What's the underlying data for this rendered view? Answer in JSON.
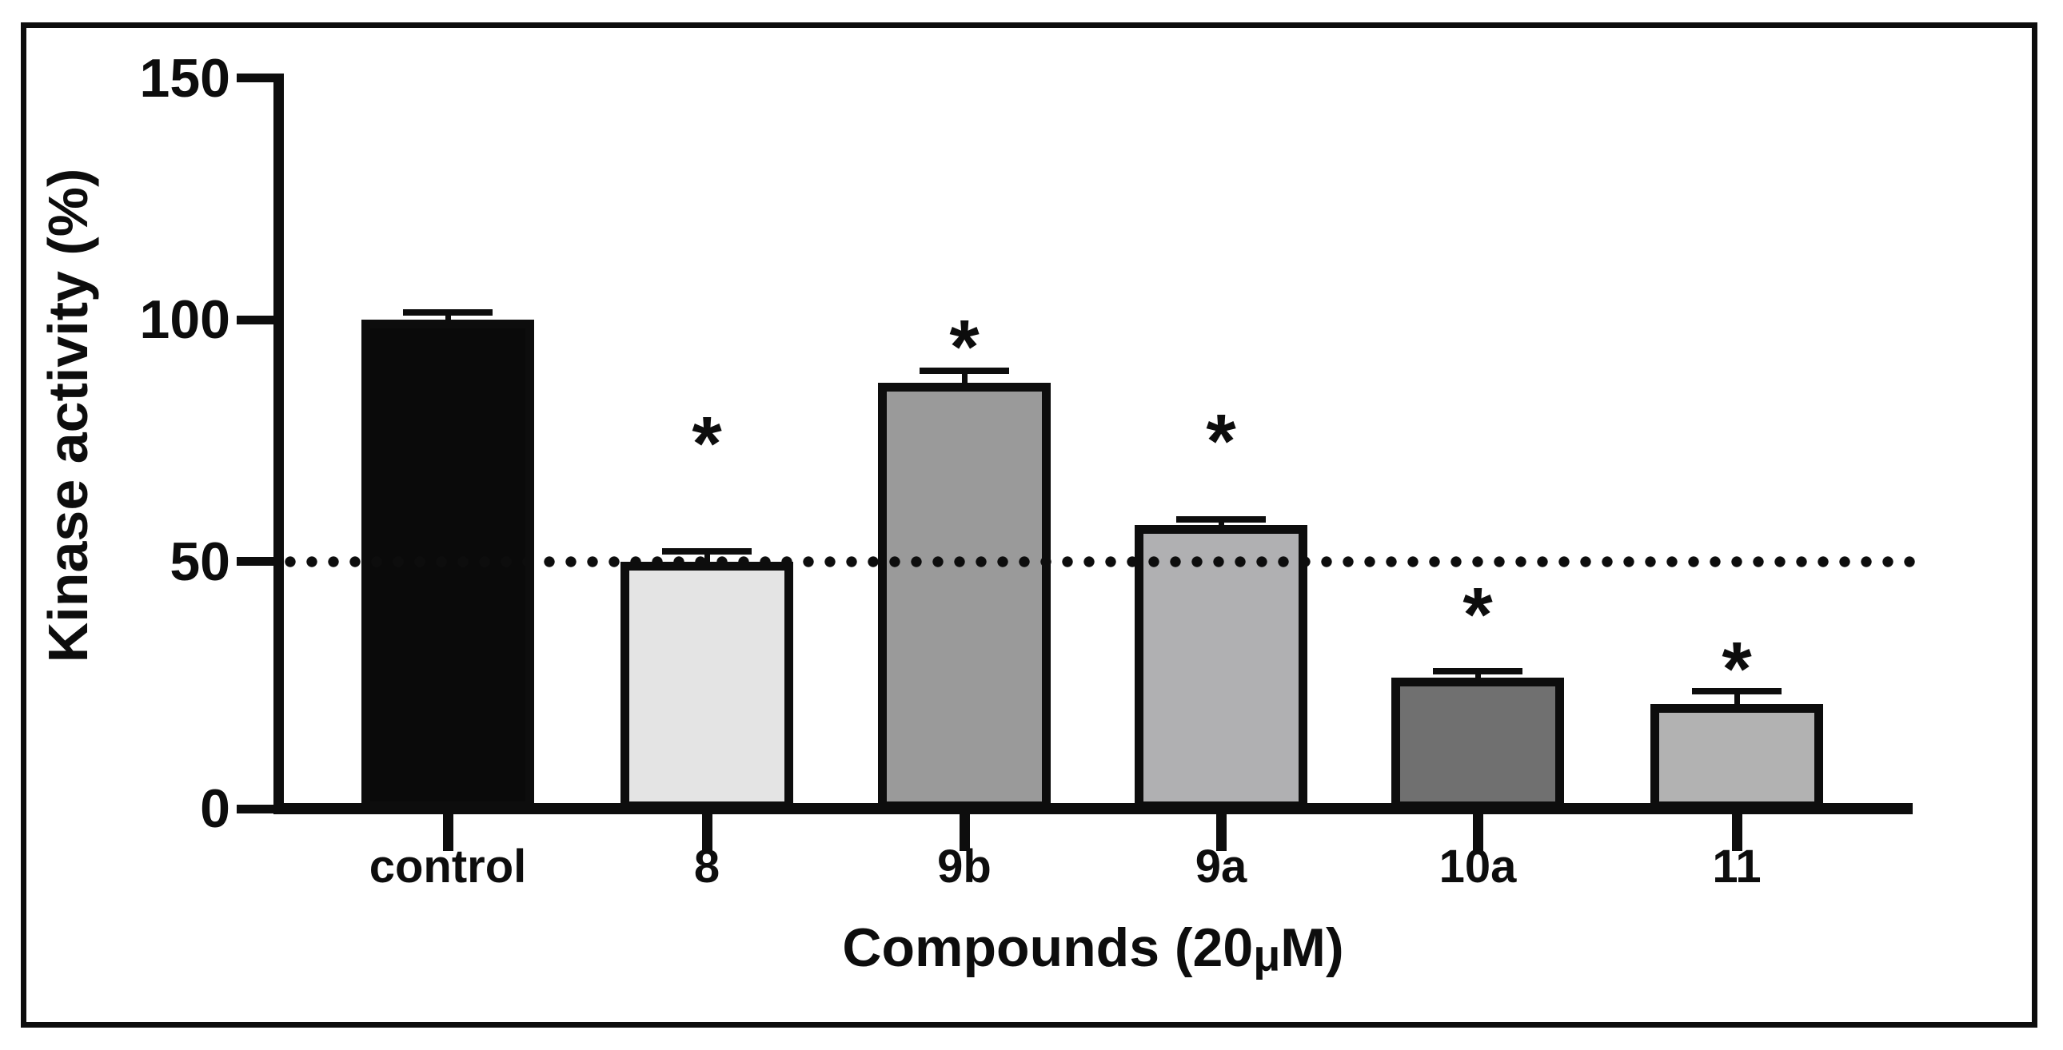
{
  "figure": {
    "background": "#ffffff",
    "frame_color": "#0d0d0d",
    "has_outer_frame": true
  },
  "chart_data": {
    "type": "bar",
    "title": "",
    "ylabel": "Kinase activity (%)",
    "xlabel": "Compounds (20μM)",
    "xlabel_parts": {
      "prefix": "Compounds (20",
      "mu": "μ",
      "suffix": "M)"
    },
    "ylim": [
      0,
      150
    ],
    "y_ticks": [
      0,
      50,
      100,
      150
    ],
    "grid": false,
    "legend": null,
    "reference_line": {
      "y": 50,
      "style": "dotted",
      "color": "#0d0d0d"
    },
    "categories": [
      "control",
      "8",
      "9b",
      "9a",
      "10a",
      "11"
    ],
    "values": [
      100,
      50,
      87,
      57.5,
      26,
      20.5
    ],
    "errors_plus": [
      1.5,
      2,
      2.5,
      1.2,
      1.2,
      2.7
    ],
    "significance": [
      "",
      "*",
      "*",
      "*",
      "*",
      "*"
    ],
    "star_y": [
      null,
      78,
      98,
      78.5,
      42.6,
      31.4
    ],
    "bar_colors": [
      "#0a0a0a",
      "#e4e4e4",
      "#9a9a9a",
      "#b0b0b2",
      "#707070",
      "#b2b2b2"
    ],
    "bar_border_color": "#0d0d0d",
    "axis_color": "#0d0d0d"
  }
}
